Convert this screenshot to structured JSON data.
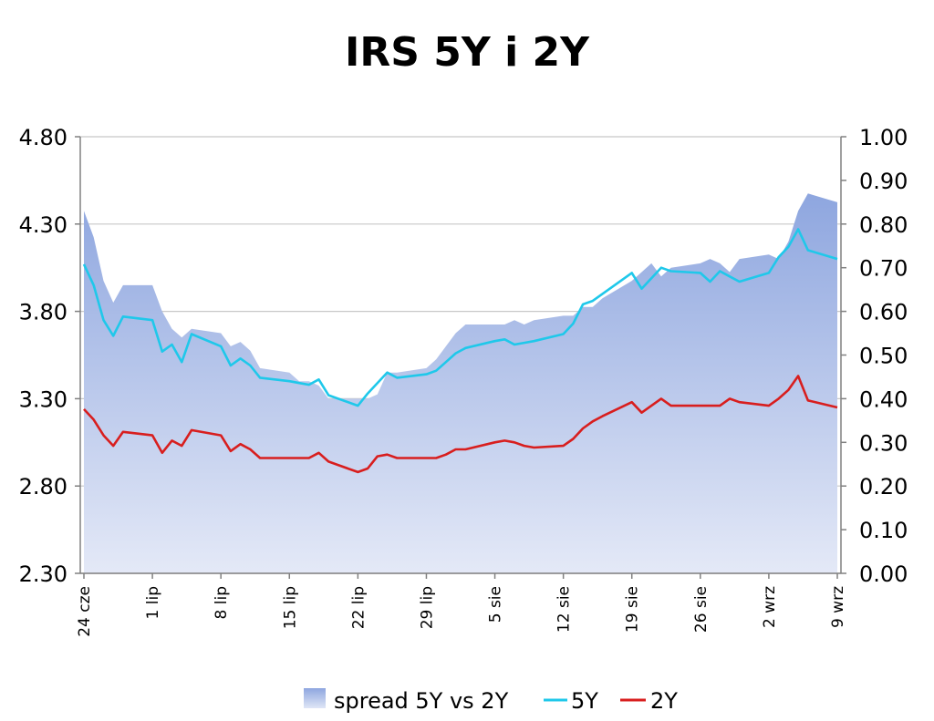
{
  "chart_data": {
    "type": "area",
    "title": "IRS 5Y i 2Y",
    "x_tick_labels": [
      "24 cze",
      "1 lip",
      "8 lip",
      "15 lip",
      "22 lip",
      "29 lip",
      "5 sie",
      "12 sie",
      "19 sie",
      "26 sie",
      "2 wrz",
      "9 wrz"
    ],
    "y_left": {
      "range": [
        2.3,
        4.8
      ],
      "ticks": [
        "2.30",
        "2.80",
        "3.30",
        "3.80",
        "4.30",
        "4.80"
      ]
    },
    "y_right": {
      "range": [
        0.0,
        1.0
      ],
      "ticks": [
        "0.00",
        "0.10",
        "0.20",
        "0.30",
        "0.40",
        "0.50",
        "0.60",
        "0.70",
        "0.80",
        "0.90",
        "1.00"
      ]
    },
    "grid": true,
    "legend_position": "bottom",
    "x_days": [
      0,
      1,
      2,
      3,
      4,
      7,
      8,
      9,
      10,
      11,
      14,
      15,
      16,
      17,
      18,
      21,
      22,
      23,
      24,
      25,
      28,
      29,
      30,
      31,
      32,
      35,
      36,
      37,
      38,
      39,
      42,
      43,
      44,
      45,
      46,
      49,
      50,
      51,
      52,
      53,
      56,
      57,
      58,
      59,
      60,
      63,
      64,
      65,
      66,
      67,
      70,
      71,
      72,
      73,
      74,
      77
    ],
    "series": [
      {
        "name": "spread 5Y vs 2Y",
        "axis": "right",
        "color": "#9fb4e6",
        "values": [
          0.83,
          0.77,
          0.67,
          0.62,
          0.66,
          0.66,
          0.6,
          0.56,
          0.54,
          0.56,
          0.55,
          0.52,
          0.53,
          0.51,
          0.47,
          0.46,
          0.44,
          0.44,
          0.43,
          0.4,
          0.4,
          0.4,
          0.41,
          0.46,
          0.46,
          0.47,
          0.49,
          0.52,
          0.55,
          0.57,
          0.57,
          0.57,
          0.58,
          0.57,
          0.58,
          0.59,
          0.59,
          0.61,
          0.61,
          0.63,
          0.67,
          0.69,
          0.71,
          0.68,
          0.7,
          0.71,
          0.72,
          0.71,
          0.69,
          0.72,
          0.73,
          0.72,
          0.76,
          0.83,
          0.87,
          0.85
        ]
      },
      {
        "name": "5Y",
        "axis": "left",
        "color": "#1fc8ea",
        "values": [
          4.07,
          3.95,
          3.75,
          3.66,
          3.77,
          3.75,
          3.57,
          3.61,
          3.51,
          3.67,
          3.6,
          3.49,
          3.53,
          3.49,
          3.42,
          3.4,
          3.39,
          3.38,
          3.41,
          3.32,
          3.26,
          3.33,
          3.39,
          3.45,
          3.42,
          3.44,
          3.46,
          3.51,
          3.56,
          3.59,
          3.63,
          3.64,
          3.61,
          3.62,
          3.63,
          3.67,
          3.73,
          3.84,
          3.86,
          3.9,
          4.02,
          3.93,
          3.99,
          4.05,
          4.03,
          4.02,
          3.97,
          4.03,
          4.0,
          3.97,
          4.02,
          4.11,
          4.17,
          4.27,
          4.15,
          4.1
        ]
      },
      {
        "name": "2Y",
        "axis": "left",
        "color": "#d81e1e",
        "values": [
          3.24,
          3.18,
          3.09,
          3.03,
          3.11,
          3.09,
          2.99,
          3.06,
          3.03,
          3.12,
          3.09,
          3.0,
          3.04,
          3.01,
          2.96,
          2.96,
          2.96,
          2.96,
          2.99,
          2.94,
          2.88,
          2.9,
          2.97,
          2.98,
          2.96,
          2.96,
          2.96,
          2.98,
          3.01,
          3.01,
          3.05,
          3.06,
          3.05,
          3.03,
          3.02,
          3.03,
          3.07,
          3.13,
          3.17,
          3.2,
          3.28,
          3.22,
          3.26,
          3.3,
          3.26,
          3.26,
          3.26,
          3.26,
          3.3,
          3.28,
          3.26,
          3.3,
          3.35,
          3.43,
          3.29,
          3.25
        ]
      }
    ]
  }
}
